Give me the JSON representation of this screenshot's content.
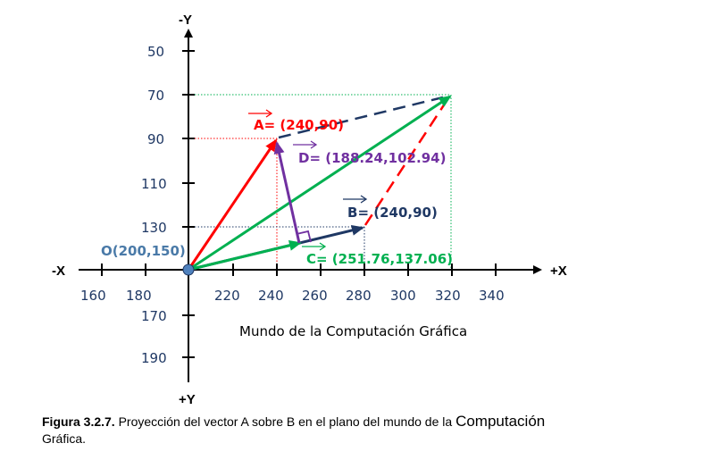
{
  "axes": {
    "x_neg_label": "-X",
    "x_pos_label": "+X",
    "y_neg_label": "-Y",
    "y_pos_label": "+Y",
    "x_ticks": [
      "160",
      "180",
      "220",
      "240",
      "260",
      "280",
      "300",
      "320",
      "340"
    ],
    "y_ticks_up": [
      "50",
      "70",
      "90",
      "110",
      "130"
    ],
    "y_ticks_down": [
      "170",
      "190"
    ]
  },
  "origin_label": "O(200,150)",
  "vectors": {
    "a": {
      "letter": "A",
      "rest": "= (240,90)",
      "color": "#ff0000"
    },
    "b": {
      "letter": "B",
      "rest": "= (240,90)",
      "color": "#1f3864"
    },
    "c": {
      "letter": "C",
      "rest": "= (251.76,137.06)",
      "color": "#00b050"
    },
    "d": {
      "letter": "D",
      "rest": "= (188.24,102.94)",
      "color": "#7030a0"
    }
  },
  "world_label": "Mundo de la Computación Gráfica",
  "caption": {
    "fig": "Figura 3.2.7.",
    "text": " Proyección del vector A sobre B en el plano del mundo de la ",
    "big": "Computación",
    "end": "Gráfica."
  }
}
